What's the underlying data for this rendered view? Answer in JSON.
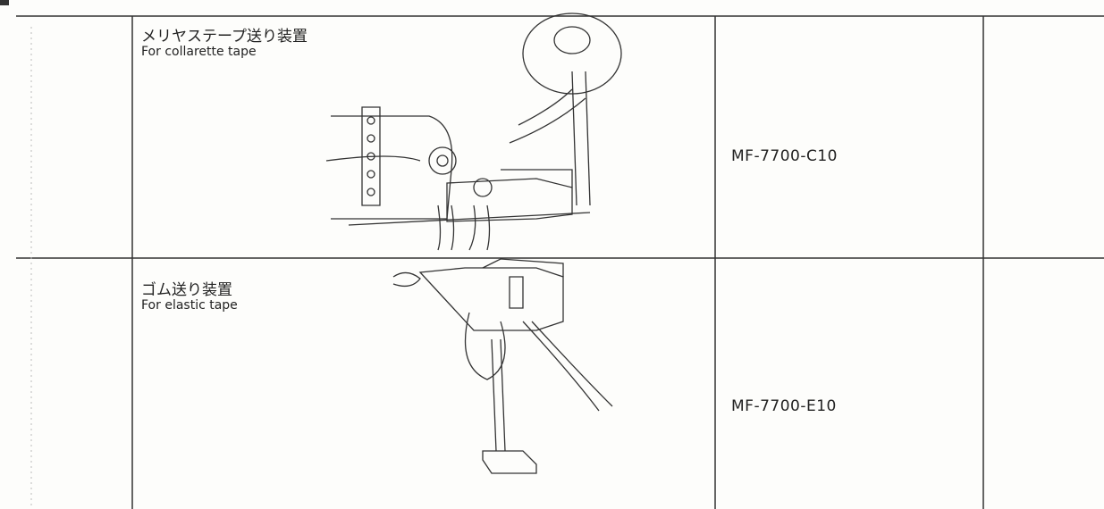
{
  "table": {
    "rows": [
      {
        "title_ja": "メリヤステープ送り装置",
        "title_en": "For collarette tape",
        "part_number": "MF-7700-C10"
      },
      {
        "title_ja": "ゴム送り装置",
        "title_en": "For elastic tape",
        "part_number": "MF-7700-E10"
      }
    ]
  }
}
